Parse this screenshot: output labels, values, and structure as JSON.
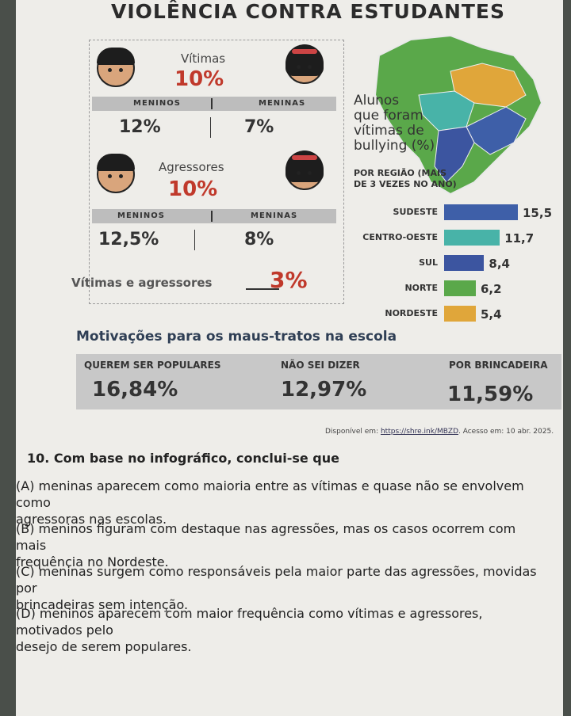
{
  "title": "VIOLÊNCIA CONTRA ESTUDANTES",
  "victims": {
    "label": "Vítimas",
    "total": "10%",
    "boys_label": "MENINOS",
    "girls_label": "MENINAS",
    "boys": "12%",
    "girls": "7%"
  },
  "aggressors": {
    "label": "Agressores",
    "total": "10%",
    "boys_label": "MENINOS",
    "girls_label": "MENINAS",
    "boys": "12,5%",
    "girls": "8%"
  },
  "both": {
    "label": "Vítimas e agressores",
    "value": "3%"
  },
  "regions": {
    "heading_1": "Alunos",
    "heading_2": "que foram",
    "heading_3": "vítimas de",
    "heading_4": "bullying (%)",
    "sub_1": "POR REGIÃO (MAIS",
    "sub_2": "DE 3 VEZES NO ANO)"
  },
  "chart_data": {
    "type": "bar",
    "categories": [
      "SUDESTE",
      "CENTRO-OESTE",
      "SUL",
      "NORTE",
      "NORDESTE"
    ],
    "values": [
      15.5,
      11.7,
      8.4,
      6.2,
      5.4
    ],
    "value_labels": [
      "15,5",
      "11,7",
      "8,4",
      "6,2",
      "5,4"
    ],
    "colors": [
      "#3e5fa8",
      "#48b3a8",
      "#3c55a0",
      "#5aa84a",
      "#e0a63a"
    ]
  },
  "motivations": {
    "title": "Motivações para os maus-tratos na escola",
    "items": [
      {
        "label": "QUEREM SER POPULARES",
        "value": "16,84%"
      },
      {
        "label": "NÃO SEI DIZER",
        "value": "12,97%"
      },
      {
        "label": "POR BRINCADEIRA",
        "value": "11,59%"
      }
    ]
  },
  "source": {
    "prefix": "Disponível em: ",
    "url": "https://shre.ink/MBZD",
    "suffix": ". Acesso em: 10 abr. 2025."
  },
  "question": {
    "stem": "10. Com base no infográfico, conclui-se que",
    "a1": "(A) meninas aparecem como maioria entre as vítimas e quase não se envolvem como",
    "a2": "agressoras nas escolas.",
    "b1": "(B) meninos figuram com destaque nas agressões, mas os casos ocorrem com mais",
    "b2": "frequência no Nordeste.",
    "c1": "(C) meninas surgem como responsáveis pela maior parte das agressões, movidas por",
    "c2": "brincadeiras sem intenção.",
    "d1": "(D) meninos aparecem com maior frequência como vítimas e agressores, motivados pelo",
    "d2": "desejo de serem populares."
  }
}
